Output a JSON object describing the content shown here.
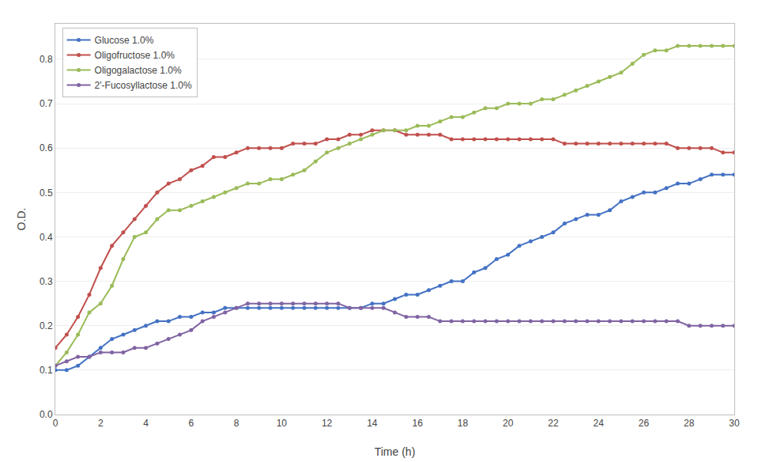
{
  "chart_data": {
    "type": "line",
    "xlabel": "Time (h)",
    "ylabel": "O.D.",
    "x": [
      0,
      0.5,
      1,
      1.5,
      2,
      2.5,
      3,
      3.5,
      4,
      4.5,
      5,
      5.5,
      6,
      6.5,
      7,
      7.5,
      8,
      8.5,
      9,
      9.5,
      10,
      10.5,
      11,
      11.5,
      12,
      12.5,
      13,
      13.5,
      14,
      14.5,
      15,
      15.5,
      16,
      16.5,
      17,
      17.5,
      18,
      18.5,
      19,
      19.5,
      20,
      20.5,
      21,
      21.5,
      22,
      22.5,
      23,
      23.5,
      24,
      24.5,
      25,
      25.5,
      26,
      26.5,
      27,
      27.5,
      28,
      28.5,
      29,
      29.5,
      30
    ],
    "series": [
      {
        "name": "Glucose 1.0%",
        "color": "#4472C4",
        "marker": "circle",
        "values": [
          0.1,
          0.1,
          0.11,
          0.13,
          0.15,
          0.17,
          0.18,
          0.19,
          0.2,
          0.21,
          0.21,
          0.22,
          0.22,
          0.23,
          0.23,
          0.24,
          0.24,
          0.24,
          0.24,
          0.24,
          0.24,
          0.24,
          0.24,
          0.24,
          0.24,
          0.24,
          0.24,
          0.24,
          0.25,
          0.25,
          0.26,
          0.27,
          0.27,
          0.28,
          0.29,
          0.3,
          0.3,
          0.32,
          0.33,
          0.35,
          0.36,
          0.38,
          0.39,
          0.4,
          0.41,
          0.43,
          0.44,
          0.45,
          0.45,
          0.46,
          0.48,
          0.49,
          0.5,
          0.5,
          0.51,
          0.52,
          0.52,
          0.53,
          0.54,
          0.54,
          0.54
        ]
      },
      {
        "name": "Oligofructose 1.0%",
        "color": "#C0504D",
        "marker": "circle",
        "values": [
          0.15,
          0.18,
          0.22,
          0.27,
          0.33,
          0.38,
          0.41,
          0.44,
          0.47,
          0.5,
          0.52,
          0.53,
          0.55,
          0.56,
          0.58,
          0.58,
          0.59,
          0.6,
          0.6,
          0.6,
          0.6,
          0.61,
          0.61,
          0.61,
          0.62,
          0.62,
          0.63,
          0.63,
          0.64,
          0.64,
          0.64,
          0.63,
          0.63,
          0.63,
          0.63,
          0.62,
          0.62,
          0.62,
          0.62,
          0.62,
          0.62,
          0.62,
          0.62,
          0.62,
          0.62,
          0.61,
          0.61,
          0.61,
          0.61,
          0.61,
          0.61,
          0.61,
          0.61,
          0.61,
          0.61,
          0.6,
          0.6,
          0.6,
          0.6,
          0.59,
          0.59
        ]
      },
      {
        "name": "Oligogalactose 1.0%",
        "color": "#9BBB59",
        "marker": "circle",
        "values": [
          0.11,
          0.14,
          0.18,
          0.23,
          0.25,
          0.29,
          0.35,
          0.4,
          0.41,
          0.44,
          0.46,
          0.46,
          0.47,
          0.48,
          0.49,
          0.5,
          0.51,
          0.52,
          0.52,
          0.53,
          0.53,
          0.54,
          0.55,
          0.57,
          0.59,
          0.6,
          0.61,
          0.62,
          0.63,
          0.64,
          0.64,
          0.64,
          0.65,
          0.65,
          0.66,
          0.67,
          0.67,
          0.68,
          0.69,
          0.69,
          0.7,
          0.7,
          0.7,
          0.71,
          0.71,
          0.72,
          0.73,
          0.74,
          0.75,
          0.76,
          0.77,
          0.79,
          0.81,
          0.82,
          0.82,
          0.83,
          0.83,
          0.83,
          0.83,
          0.83,
          0.83
        ]
      },
      {
        "name": "2'-Fucosyllactose 1.0%",
        "color": "#8064A2",
        "marker": "circle",
        "values": [
          0.11,
          0.12,
          0.13,
          0.13,
          0.14,
          0.14,
          0.14,
          0.15,
          0.15,
          0.16,
          0.17,
          0.18,
          0.19,
          0.21,
          0.22,
          0.23,
          0.24,
          0.25,
          0.25,
          0.25,
          0.25,
          0.25,
          0.25,
          0.25,
          0.25,
          0.25,
          0.24,
          0.24,
          0.24,
          0.24,
          0.23,
          0.22,
          0.22,
          0.22,
          0.21,
          0.21,
          0.21,
          0.21,
          0.21,
          0.21,
          0.21,
          0.21,
          0.21,
          0.21,
          0.21,
          0.21,
          0.21,
          0.21,
          0.21,
          0.21,
          0.21,
          0.21,
          0.21,
          0.21,
          0.21,
          0.21,
          0.2,
          0.2,
          0.2,
          0.2,
          0.2
        ]
      }
    ],
    "xlim": [
      0,
      30
    ],
    "ylim": [
      0.0,
      0.88
    ],
    "xticks": [
      0,
      2,
      4,
      6,
      8,
      10,
      12,
      14,
      16,
      18,
      20,
      22,
      24,
      26,
      28,
      30
    ],
    "yticks": [
      {
        "value": 0,
        "label": "0.0"
      },
      0.1,
      0.2,
      0.3,
      0.4,
      0.5,
      0.6,
      0.7,
      0.8
    ],
    "grid": true,
    "legend": "upper left"
  }
}
